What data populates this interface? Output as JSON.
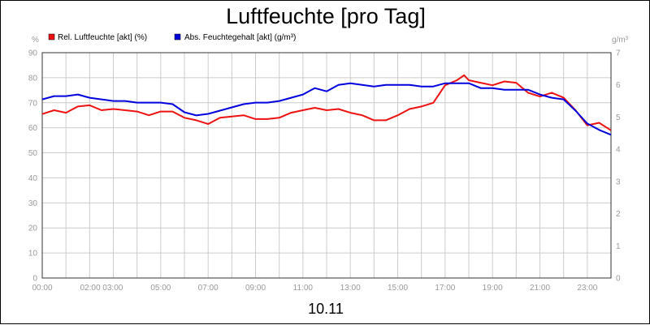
{
  "chart_data": {
    "type": "line",
    "title": "Luftfeuchte [pro Tag]",
    "date_label": "10.11",
    "y_left_unit": "%",
    "y_right_unit": "g/m³",
    "y_left": {
      "ylim": [
        0,
        90
      ],
      "ticks": [
        "0",
        "10",
        "20",
        "30",
        "40",
        "50",
        "60",
        "70",
        "80",
        "90"
      ]
    },
    "y_right": {
      "ylim": [
        0,
        7
      ],
      "ticks": [
        "0",
        "1",
        "2",
        "3",
        "4",
        "5",
        "6",
        "7"
      ]
    },
    "x_range_hours": [
      0,
      24
    ],
    "x_ticks": [
      {
        "hour": 0,
        "label": "00:00"
      },
      {
        "hour": 2.5,
        "label": "02:00 03:00"
      },
      {
        "hour": 5,
        "label": "05:00"
      },
      {
        "hour": 7,
        "label": "07:00"
      },
      {
        "hour": 9,
        "label": "09:00"
      },
      {
        "hour": 11,
        "label": "11:00"
      },
      {
        "hour": 13,
        "label": "13:00"
      },
      {
        "hour": 15,
        "label": "15:00"
      },
      {
        "hour": 17,
        "label": "17:00"
      },
      {
        "hour": 19,
        "label": "19:00"
      },
      {
        "hour": 21,
        "label": "21:00"
      },
      {
        "hour": 23,
        "label": "23:00"
      }
    ],
    "grid": true,
    "legend_position": "top-left",
    "series": [
      {
        "name": "Rel. Luftfeuchte [akt] (%)",
        "axis": "left",
        "color": "#ee1111",
        "x": [
          0,
          0.5,
          1,
          1.5,
          2,
          2.5,
          3,
          3.5,
          4,
          4.5,
          5,
          5.5,
          6,
          6.5,
          7,
          7.5,
          8,
          8.5,
          9,
          9.5,
          10,
          10.5,
          11,
          11.5,
          12,
          12.5,
          13,
          13.5,
          14,
          14.5,
          15,
          15.5,
          16,
          16.5,
          17,
          17.5,
          17.8,
          18,
          18.5,
          19,
          19.5,
          20,
          20.5,
          21,
          21.5,
          22,
          22.5,
          23,
          23.5,
          24
        ],
        "values": [
          65.5,
          67,
          66,
          68.5,
          69,
          67,
          67.5,
          67,
          66.5,
          65,
          66.5,
          66.5,
          64,
          63,
          61.5,
          64,
          64.5,
          65,
          63.5,
          63.5,
          64,
          66,
          67,
          68,
          67,
          67.5,
          66,
          65,
          63,
          63,
          65,
          67.5,
          68.5,
          70,
          77,
          79,
          81,
          79,
          78,
          77,
          78.5,
          78,
          74,
          72.5,
          74,
          72,
          67,
          61,
          62,
          59
        ]
      },
      {
        "name": "Abs. Feuchtegehalt [akt] (g/m³)",
        "axis": "right",
        "color": "#0000dd",
        "x": [
          0,
          0.5,
          1,
          1.5,
          2,
          2.5,
          3,
          3.5,
          4,
          4.5,
          5,
          5.5,
          6,
          6.5,
          7,
          7.5,
          8,
          8.5,
          9,
          9.5,
          10,
          10.5,
          11,
          11.5,
          12,
          12.5,
          13,
          13.5,
          14,
          14.5,
          15,
          15.5,
          16,
          16.5,
          17,
          17.5,
          18,
          18.5,
          19,
          19.5,
          20,
          20.5,
          21,
          21.5,
          22,
          22.5,
          23,
          23.5,
          24
        ],
        "values": [
          5.55,
          5.65,
          5.65,
          5.7,
          5.6,
          5.55,
          5.5,
          5.5,
          5.45,
          5.45,
          5.45,
          5.4,
          5.15,
          5.05,
          5.1,
          5.2,
          5.3,
          5.4,
          5.45,
          5.45,
          5.5,
          5.6,
          5.7,
          5.9,
          5.8,
          6.0,
          6.05,
          6.0,
          5.95,
          6.0,
          6.0,
          6.0,
          5.95,
          5.95,
          6.05,
          6.05,
          6.05,
          5.9,
          5.9,
          5.85,
          5.85,
          5.85,
          5.7,
          5.6,
          5.55,
          5.2,
          4.8,
          4.6,
          4.45
        ]
      }
    ]
  }
}
